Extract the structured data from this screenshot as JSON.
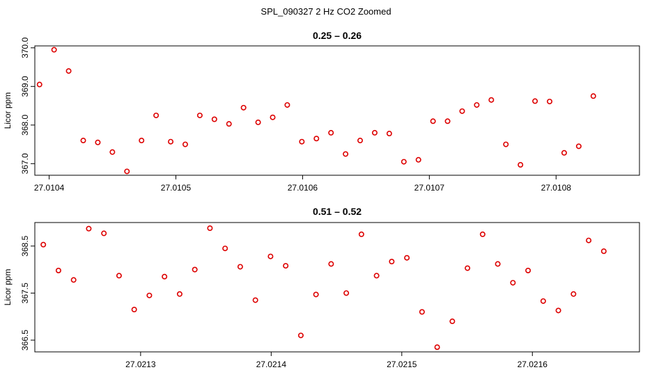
{
  "figure": {
    "title": "SPL_090327  2 Hz CO2 Zoomed"
  },
  "chart_data": [
    {
      "type": "scatter",
      "title": "0.25 – 0.26",
      "xlabel": "",
      "ylabel": "Licor ppm",
      "xlim": [
        27.0103887,
        27.0108658
      ],
      "ylim": [
        366.7,
        370.05
      ],
      "xticks": [
        27.0104,
        27.0105,
        27.0106,
        27.0107,
        27.0108
      ],
      "xtick_labels": [
        "27.0104",
        "27.0105",
        "27.0106",
        "27.0107",
        "27.0108"
      ],
      "yticks": [
        367.0,
        368.0,
        369.0,
        370.0
      ],
      "ytick_labels": [
        "367.0",
        "368.0",
        "369.0",
        "370.0"
      ],
      "marker_color": "#dd0000",
      "grid": false,
      "x": [
        27.0103924,
        27.0104039,
        27.0104154,
        27.0104269,
        27.0104384,
        27.0104499,
        27.0104614,
        27.0104729,
        27.0104844,
        27.0104959,
        27.0105074,
        27.0105189,
        27.0105304,
        27.0105419,
        27.0105534,
        27.0105649,
        27.0105764,
        27.0105879,
        27.0105994,
        27.0106109,
        27.0106224,
        27.0106339,
        27.0106454,
        27.0106569,
        27.0106684,
        27.0106799,
        27.0106914,
        27.0107029,
        27.0107144,
        27.0107259,
        27.0107374,
        27.0107489,
        27.0107604,
        27.0107719,
        27.0107834,
        27.0107949,
        27.0108064,
        27.0108179,
        27.0108294
      ],
      "y": [
        369.05,
        369.95,
        369.4,
        367.6,
        367.55,
        367.3,
        366.8,
        367.6,
        368.25,
        367.57,
        367.5,
        368.25,
        368.15,
        368.03,
        368.45,
        368.07,
        368.2,
        368.52,
        367.57,
        367.65,
        367.8,
        367.25,
        367.6,
        367.8,
        367.78,
        367.05,
        367.1,
        368.1,
        368.1,
        368.36,
        368.52,
        368.65,
        367.5,
        366.97,
        368.62,
        368.61,
        367.28,
        367.45,
        368.75
      ]
    },
    {
      "type": "scatter",
      "title": "0.51 – 0.52",
      "xlabel": "",
      "ylabel": "Licor ppm",
      "xlim": [
        27.021219,
        27.021682
      ],
      "ylim": [
        366.25,
        369.0
      ],
      "xticks": [
        27.0213,
        27.0214,
        27.0215,
        27.0216
      ],
      "xtick_labels": [
        "27.0213",
        "27.0214",
        "27.0215",
        "27.0216"
      ],
      "yticks": [
        366.5,
        367.5,
        368.5
      ],
      "ytick_labels": [
        "366.5",
        "367.5",
        "368.5"
      ],
      "marker_color": "#dd0000",
      "grid": false,
      "x": [
        27.0212255,
        27.0212371,
        27.0212487,
        27.0212603,
        27.0212719,
        27.0212835,
        27.0212951,
        27.0213067,
        27.0213183,
        27.0213299,
        27.0213415,
        27.0213531,
        27.0213647,
        27.0213763,
        27.0213879,
        27.0213995,
        27.0214111,
        27.0214227,
        27.0214343,
        27.0214459,
        27.0214575,
        27.0214691,
        27.0214807,
        27.0214923,
        27.0215039,
        27.0215155,
        27.0215271,
        27.0215387,
        27.0215503,
        27.0215619,
        27.0215735,
        27.0215851,
        27.0215967,
        27.0216083,
        27.0216199,
        27.0216315,
        27.0216431,
        27.0216547
      ],
      "y": [
        368.53,
        367.98,
        367.78,
        368.87,
        368.77,
        367.87,
        367.15,
        367.45,
        367.85,
        367.48,
        368.0,
        368.88,
        368.45,
        368.06,
        367.35,
        368.28,
        368.08,
        366.6,
        367.47,
        368.12,
        367.5,
        368.75,
        367.87,
        368.17,
        368.25,
        367.1,
        366.35,
        366.9,
        368.03,
        368.75,
        368.12,
        367.72,
        367.98,
        367.33,
        367.13,
        367.48,
        368.62,
        368.39
      ]
    }
  ]
}
